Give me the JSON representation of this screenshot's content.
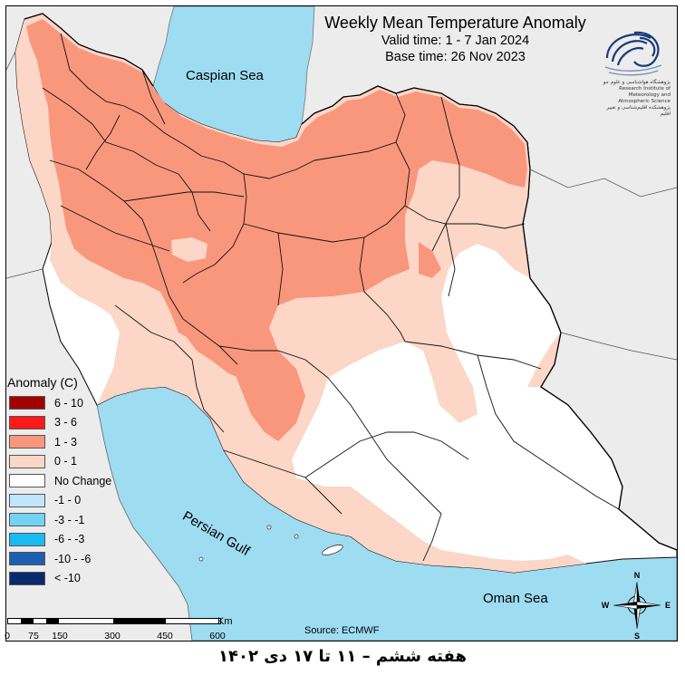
{
  "title": {
    "main": "Weekly Mean Temperature Anomaly",
    "valid_time": "Valid time: 1 - 7 Jan 2024",
    "base_time": "Base time: 26 Nov 2023"
  },
  "water_labels": {
    "caspian": "Caspian Sea",
    "gulf": "Persian Gulf",
    "oman": "Oman Sea"
  },
  "legend": {
    "title": "Anomaly (C)",
    "items": [
      {
        "label": "6 - 10",
        "color": "#a30000"
      },
      {
        "label": "3 - 6",
        "color": "#ff1a1a"
      },
      {
        "label": "1 - 3",
        "color": "#f9977d"
      },
      {
        "label": "0 - 1",
        "color": "#fcd6c6"
      },
      {
        "label": "No Change",
        "color": "#ffffff"
      },
      {
        "label": "-1 - 0",
        "color": "#bfe6fb"
      },
      {
        "label": "-3 - -1",
        "color": "#73d3f7"
      },
      {
        "label": "-6 - -3",
        "color": "#18baf0"
      },
      {
        "label": "-10 - -6",
        "color": "#1a5fb0"
      },
      {
        "label": "< -10",
        "color": "#0a2a6e"
      }
    ]
  },
  "scale_bar": {
    "unit": "Km",
    "ticks": [
      "0",
      "75",
      "150",
      "300",
      "450",
      "600"
    ]
  },
  "compass": {
    "n": "N",
    "s": "S",
    "e": "E",
    "w": "W"
  },
  "source": "Source: ECMWF",
  "logo_text": "پژوهشگاه هواشناسی و علوم جو\nResearch Institute of Meteorology and Atmospheric Science\nپژوهشکده اقلیم‌شناسی و تغییر اقلیم",
  "footer": "هفته ششم – ۱۱ تا ۱۷ دی ۱۴۰۲",
  "colors": {
    "water": "#9edcf2",
    "outside": "#ececec",
    "warm": "#f9977d",
    "mild": "#fcd6c6",
    "neutral": "#ffffff"
  }
}
